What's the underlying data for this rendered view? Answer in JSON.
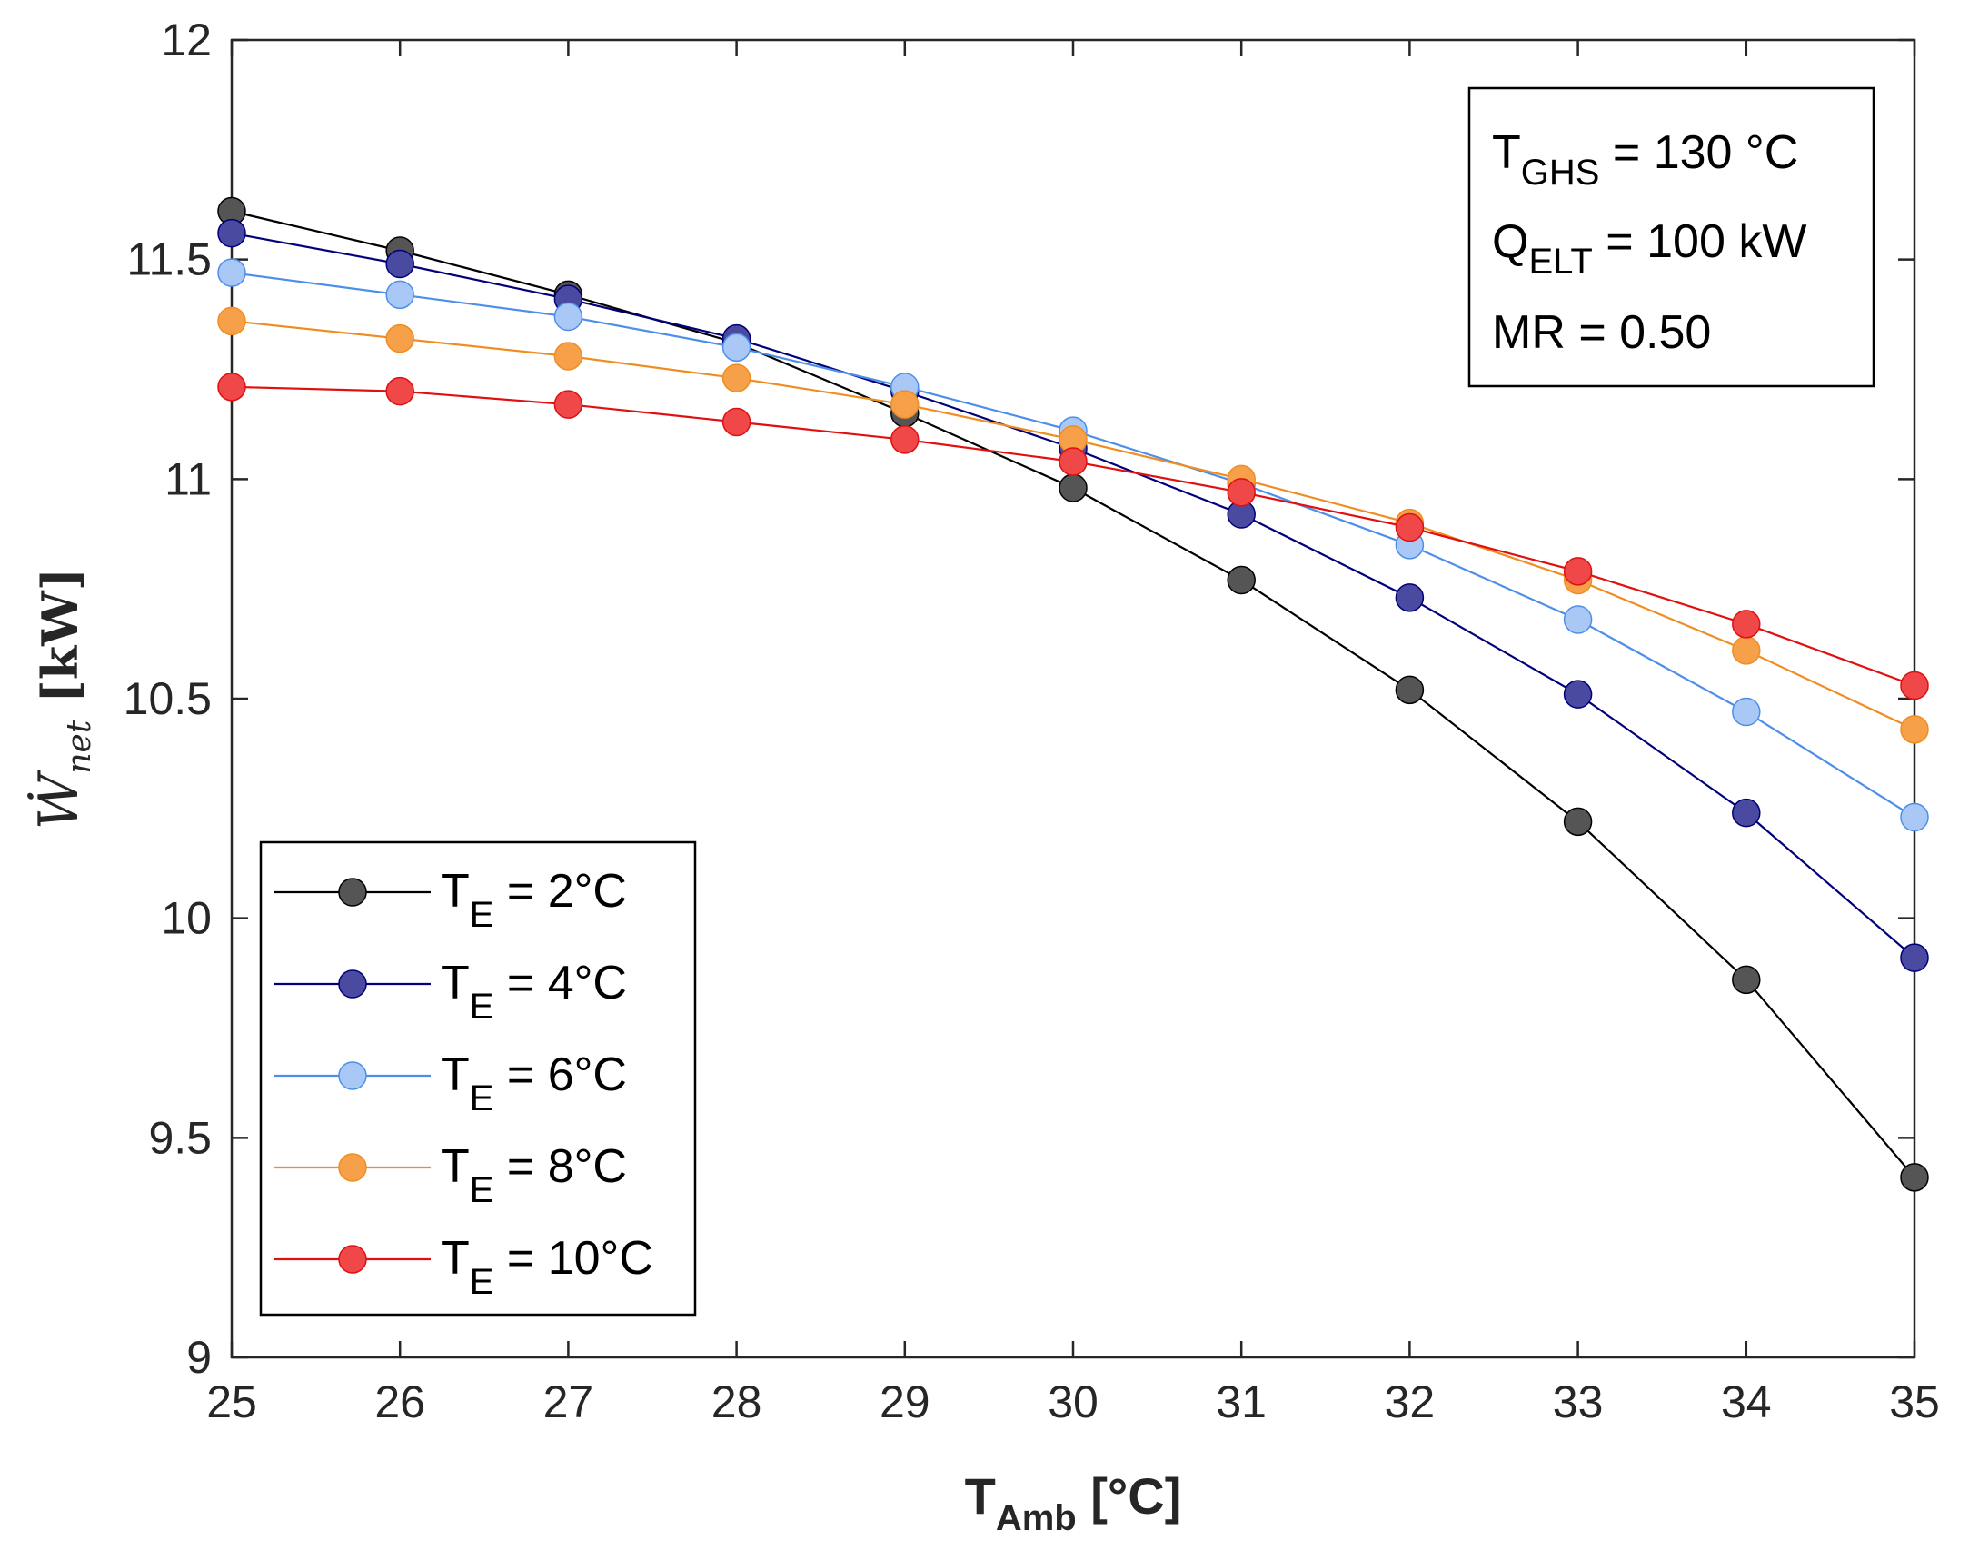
{
  "chart_data": {
    "type": "line",
    "xlabel": {
      "main": "T",
      "sub": "Amb",
      "unit": " [°C]"
    },
    "ylabel": {
      "main": "Ẇ",
      "sub": "net",
      "unit": " [kW]"
    },
    "xlim": [
      25,
      35
    ],
    "ylim": [
      9,
      12
    ],
    "x_ticks": [
      "25",
      "26",
      "27",
      "28",
      "29",
      "30",
      "31",
      "32",
      "33",
      "34",
      "35"
    ],
    "y_ticks": [
      "9",
      "9.5",
      "10",
      "10.5",
      "11",
      "11.5",
      "12"
    ],
    "x": [
      25,
      26,
      27,
      28,
      29,
      30,
      31,
      32,
      33,
      34,
      35
    ],
    "grid": false,
    "legend_position": "bottom-left",
    "series": [
      {
        "label": "T",
        "sub": "E",
        "suffix": " = 2°C",
        "color": "#555555",
        "line_color": "#000000",
        "values": [
          11.61,
          11.52,
          11.42,
          11.31,
          11.15,
          10.98,
          10.77,
          10.52,
          10.22,
          9.86,
          9.41
        ]
      },
      {
        "label": "T",
        "sub": "E",
        "suffix": " = 4°C",
        "color": "#4a4aa0",
        "line_color": "#00007a",
        "values": [
          11.56,
          11.49,
          11.41,
          11.32,
          11.2,
          11.07,
          10.92,
          10.73,
          10.51,
          10.24,
          9.91
        ]
      },
      {
        "label": "T",
        "sub": "E",
        "suffix": " = 6°C",
        "color": "#a9c8f5",
        "line_color": "#4d8fe8",
        "values": [
          11.47,
          11.42,
          11.37,
          11.3,
          11.21,
          11.11,
          10.99,
          10.85,
          10.68,
          10.47,
          10.23
        ]
      },
      {
        "label": "T",
        "sub": "E",
        "suffix": " = 8°C",
        "color": "#f7a04a",
        "line_color": "#ef8d22",
        "values": [
          11.36,
          11.32,
          11.28,
          11.23,
          11.17,
          11.09,
          11.0,
          10.9,
          10.77,
          10.61,
          10.43
        ]
      },
      {
        "label": "T",
        "sub": "E",
        "suffix": " = 10°C",
        "color": "#f04848",
        "line_color": "#e01010",
        "values": [
          11.21,
          11.2,
          11.17,
          11.13,
          11.09,
          11.04,
          10.97,
          10.89,
          10.79,
          10.67,
          10.53
        ]
      }
    ],
    "annotations": [
      {
        "main": "T",
        "sub": "GHS",
        "rest": " = 130 °C"
      },
      {
        "main": "Q",
        "sub": "ELT",
        "rest": " = 100 kW"
      },
      {
        "main": "MR = 0.50",
        "sub": "",
        "rest": ""
      }
    ]
  }
}
